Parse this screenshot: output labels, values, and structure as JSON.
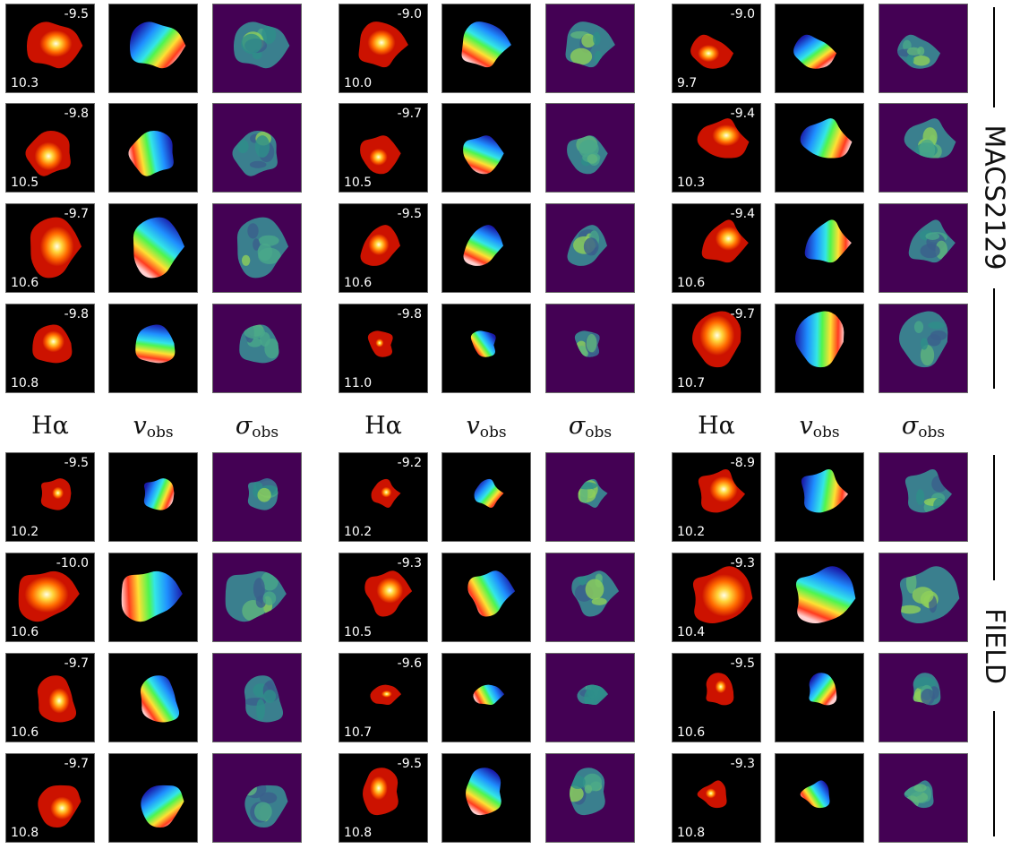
{
  "column_headers": {
    "ha": {
      "main": "Hα"
    },
    "vobs": {
      "main": "v",
      "sub": "obs"
    },
    "sigma": {
      "main": "σ",
      "sub": "obs"
    }
  },
  "samples": [
    {
      "name": "MACS2129",
      "section": "top"
    },
    {
      "name": "FIELD",
      "section": "bottom"
    }
  ],
  "colors": {
    "ha_bg": "#000000",
    "sigma_bg": "#440154",
    "frame": "#6b6b6b"
  },
  "colormaps": {
    "ha": "hot",
    "vobs": "jet",
    "sigma": "viridis"
  },
  "sections": [
    {
      "name": "MACS2129",
      "groups": [
        {
          "galaxies": [
            {
              "top_right": "-9.5",
              "bottom_left": "10.3"
            },
            {
              "top_right": "-9.8",
              "bottom_left": "10.5"
            },
            {
              "top_right": "-9.7",
              "bottom_left": "10.6"
            },
            {
              "top_right": "-9.8",
              "bottom_left": "10.8"
            }
          ]
        },
        {
          "galaxies": [
            {
              "top_right": "-9.0",
              "bottom_left": "10.0"
            },
            {
              "top_right": "-9.7",
              "bottom_left": "10.5"
            },
            {
              "top_right": "-9.5",
              "bottom_left": "10.6"
            },
            {
              "top_right": "-9.8",
              "bottom_left": "11.0"
            }
          ]
        },
        {
          "galaxies": [
            {
              "top_right": "-9.0",
              "bottom_left": "9.7"
            },
            {
              "top_right": "-9.4",
              "bottom_left": "10.3"
            },
            {
              "top_right": "-9.4",
              "bottom_left": "10.6"
            },
            {
              "top_right": "-9.7",
              "bottom_left": "10.7"
            }
          ]
        }
      ]
    },
    {
      "name": "FIELD",
      "groups": [
        {
          "galaxies": [
            {
              "top_right": "-9.5",
              "bottom_left": "10.2"
            },
            {
              "top_right": "-10.0",
              "bottom_left": "10.6"
            },
            {
              "top_right": "-9.7",
              "bottom_left": "10.6"
            },
            {
              "top_right": "-9.7",
              "bottom_left": "10.8"
            }
          ]
        },
        {
          "galaxies": [
            {
              "top_right": "-9.2",
              "bottom_left": "10.2"
            },
            {
              "top_right": "-9.3",
              "bottom_left": "10.5"
            },
            {
              "top_right": "-9.6",
              "bottom_left": "10.7"
            },
            {
              "top_right": "-9.5",
              "bottom_left": "10.8"
            }
          ]
        },
        {
          "galaxies": [
            {
              "top_right": "-8.9",
              "bottom_left": "10.2"
            },
            {
              "top_right": "-9.3",
              "bottom_left": "10.4"
            },
            {
              "top_right": "-9.5",
              "bottom_left": "10.6"
            },
            {
              "top_right": "-9.3",
              "bottom_left": "10.8"
            }
          ]
        }
      ]
    }
  ]
}
